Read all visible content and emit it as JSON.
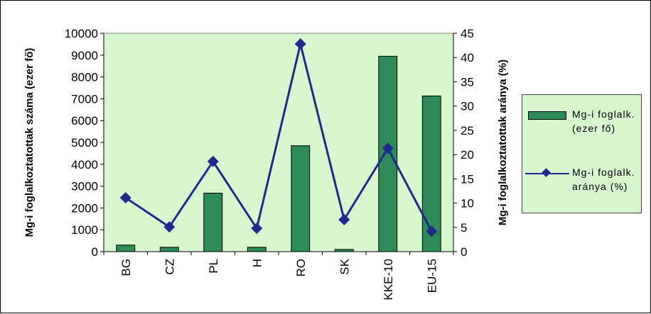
{
  "chart_data": {
    "type": "bar+line",
    "categories": [
      "BG",
      "CZ",
      "PL",
      "H",
      "RO",
      "SK",
      "KKE-10",
      "EU-15"
    ],
    "series": [
      {
        "name": "Mg-i foglalk. (ezer fő)",
        "type": "bar",
        "axis": "left",
        "color": "#2e8b57",
        "values": [
          300,
          200,
          2680,
          200,
          4850,
          100,
          8950,
          7130
        ]
      },
      {
        "name": "Mg-i foglalk. aránya (%)",
        "type": "line",
        "axis": "right",
        "color": "#1f2a8c",
        "values": [
          11.1,
          5.1,
          18.6,
          4.8,
          42.8,
          6.6,
          21.3,
          4.2
        ]
      }
    ],
    "ylabel": "Mg-i foglalkoztatottak száma (ezer fő)",
    "ylabel_right": "Mg-i foglalkoztatottak aránya (%)",
    "ylim": [
      0,
      10000
    ],
    "ylim_right": [
      0,
      45
    ],
    "yticks": [
      0,
      1000,
      2000,
      3000,
      4000,
      5000,
      6000,
      7000,
      8000,
      9000,
      10000
    ],
    "yticks_right": [
      0,
      5,
      10,
      15,
      20,
      25,
      30,
      35,
      40,
      45
    ],
    "grid": false,
    "legend_position": "right",
    "legend": {
      "bar_line1": "Mg-i foglalk.",
      "bar_line2": "(ezer fő)",
      "line_line1": "Mg-i foglalk.",
      "line_line2": "aránya    (%)"
    },
    "plot_background": "#d7f7cf"
  }
}
